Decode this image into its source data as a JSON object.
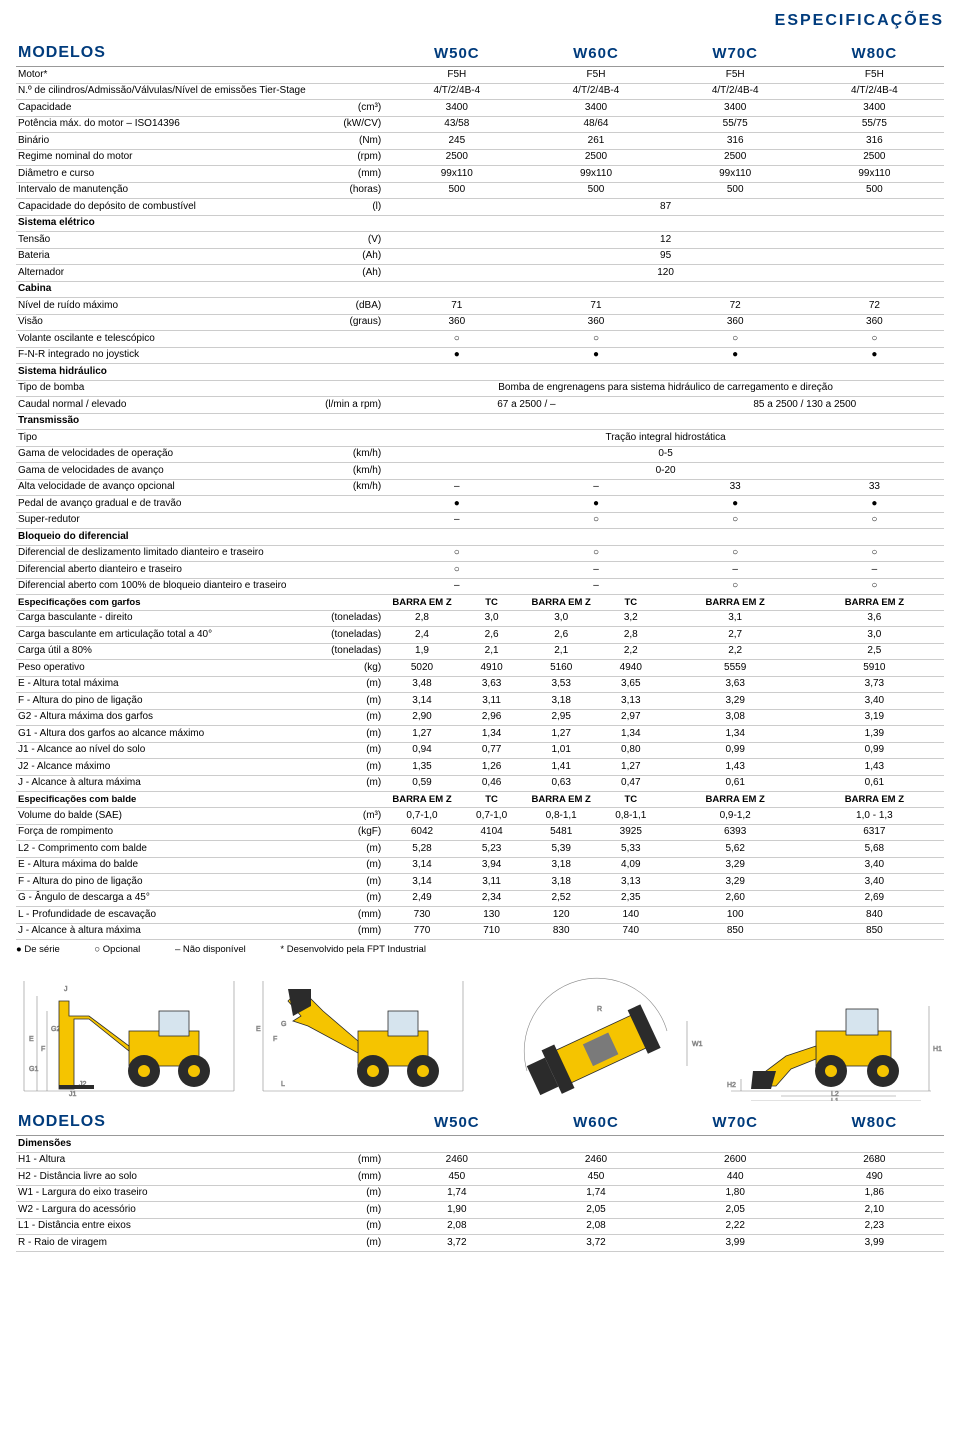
{
  "header": "ESPECIFICAÇÕES",
  "modelos_label": "MODELOS",
  "models": [
    "W50C",
    "W60C",
    "W70C",
    "W80C"
  ],
  "rows": [
    {
      "type": "row",
      "label": "Motor*",
      "unit": "",
      "v": [
        "F5H",
        "F5H",
        "F5H",
        "F5H"
      ]
    },
    {
      "type": "row",
      "label": "N.º de cilindros/Admissão/Válvulas/Nível de emissões Tier-Stage",
      "unit": "",
      "v": [
        "4/T/2/4B-4",
        "4/T/2/4B-4",
        "4/T/2/4B-4",
        "4/T/2/4B-4"
      ]
    },
    {
      "type": "row",
      "label": "Capacidade",
      "unit": "(cm³)",
      "v": [
        "3400",
        "3400",
        "3400",
        "3400"
      ]
    },
    {
      "type": "row",
      "label": "Potência máx. do motor – ISO14396",
      "unit": "(kW/CV)",
      "v": [
        "43/58",
        "48/64",
        "55/75",
        "55/75"
      ]
    },
    {
      "type": "row",
      "label": "Binário",
      "unit": "(Nm)",
      "v": [
        "245",
        "261",
        "316",
        "316"
      ]
    },
    {
      "type": "row",
      "label": "Regime nominal do motor",
      "unit": "(rpm)",
      "v": [
        "2500",
        "2500",
        "2500",
        "2500"
      ]
    },
    {
      "type": "row",
      "label": "Diâmetro e curso",
      "unit": "(mm)",
      "v": [
        "99x110",
        "99x110",
        "99x110",
        "99x110"
      ]
    },
    {
      "type": "row",
      "label": "Intervalo de manutenção",
      "unit": "(horas)",
      "v": [
        "500",
        "500",
        "500",
        "500"
      ]
    },
    {
      "type": "span",
      "label": "Capacidade do depósito de combustível",
      "unit": "(l)",
      "val": "87"
    },
    {
      "type": "section",
      "label": "Sistema elétrico"
    },
    {
      "type": "span",
      "label": "Tensão",
      "unit": "(V)",
      "val": "12"
    },
    {
      "type": "span",
      "label": "Bateria",
      "unit": "(Ah)",
      "val": "95"
    },
    {
      "type": "span",
      "label": "Alternador",
      "unit": "(Ah)",
      "val": "120"
    },
    {
      "type": "section",
      "label": "Cabina"
    },
    {
      "type": "row",
      "label": "Nível de ruído máximo",
      "unit": "(dBA)",
      "v": [
        "71",
        "71",
        "72",
        "72"
      ]
    },
    {
      "type": "row",
      "label": "Visão",
      "unit": "(graus)",
      "v": [
        "360",
        "360",
        "360",
        "360"
      ]
    },
    {
      "type": "row",
      "label": "Volante oscilante e telescópico",
      "unit": "",
      "v": [
        "○",
        "○",
        "○",
        "○"
      ]
    },
    {
      "type": "row",
      "label": "F-N-R integrado no joystick",
      "unit": "",
      "v": [
        "●",
        "●",
        "●",
        "●"
      ]
    },
    {
      "type": "section",
      "label": "Sistema hidráulico"
    },
    {
      "type": "span",
      "label": "Tipo de bomba",
      "unit": "",
      "val": "Bomba de engrenagens para sistema hidráulico de carregamento e direção"
    },
    {
      "type": "row2",
      "label": "Caudal normal / elevado",
      "unit": "(l/min a rpm)",
      "v": [
        "67 a 2500 / –",
        "85 a 2500 / 130 a 2500"
      ]
    },
    {
      "type": "section",
      "label": "Transmissão"
    },
    {
      "type": "span",
      "label": "Tipo",
      "unit": "",
      "val": "Tração integral hidrostática"
    },
    {
      "type": "span",
      "label": "Gama de velocidades de operação",
      "unit": "(km/h)",
      "val": "0-5"
    },
    {
      "type": "span",
      "label": "Gama de velocidades de avanço",
      "unit": "(km/h)",
      "val": "0-20"
    },
    {
      "type": "row",
      "label": "Alta velocidade de avanço opcional",
      "unit": "(km/h)",
      "v": [
        "–",
        "–",
        "33",
        "33"
      ]
    },
    {
      "type": "row",
      "label": "Pedal de avanço gradual e de travão",
      "unit": "",
      "v": [
        "●",
        "●",
        "●",
        "●"
      ]
    },
    {
      "type": "row",
      "label": "Super-redutor",
      "unit": "",
      "v": [
        "–",
        "○",
        "○",
        "○"
      ]
    },
    {
      "type": "section",
      "label": "Bloqueio do diferencial"
    },
    {
      "type": "row",
      "label": "Diferencial de deslizamento limitado dianteiro e traseiro",
      "unit": "",
      "v": [
        "○",
        "○",
        "○",
        "○"
      ]
    },
    {
      "type": "row",
      "label": "Diferencial aberto dianteiro e traseiro",
      "unit": "",
      "v": [
        "○",
        "–",
        "–",
        "–"
      ]
    },
    {
      "type": "row",
      "label": "Diferencial aberto com 100% de bloqueio dianteiro e traseiro",
      "unit": "",
      "v": [
        "–",
        "–",
        "○",
        "○"
      ]
    },
    {
      "type": "subhead",
      "label": "Especificações com garfos",
      "v": [
        "BARRA EM Z",
        "TC",
        "BARRA EM Z",
        "TC",
        "BARRA EM Z",
        "BARRA EM Z"
      ]
    },
    {
      "type": "row6",
      "label": "Carga basculante - direito",
      "unit": "(toneladas)",
      "v": [
        "2,8",
        "3,0",
        "3,0",
        "3,2",
        "3,1",
        "3,6"
      ]
    },
    {
      "type": "row6",
      "label": "Carga basculante em articulação total a 40°",
      "unit": "(toneladas)",
      "v": [
        "2,4",
        "2,6",
        "2,6",
        "2,8",
        "2,7",
        "3,0"
      ]
    },
    {
      "type": "row6",
      "label": "Carga útil a 80%",
      "unit": "(toneladas)",
      "v": [
        "1,9",
        "2,1",
        "2,1",
        "2,2",
        "2,2",
        "2,5"
      ]
    },
    {
      "type": "row6",
      "label": "Peso operativo",
      "unit": "(kg)",
      "v": [
        "5020",
        "4910",
        "5160",
        "4940",
        "5559",
        "5910"
      ]
    },
    {
      "type": "row6",
      "label": "E - Altura total máxima",
      "unit": "(m)",
      "v": [
        "3,48",
        "3,63",
        "3,53",
        "3,65",
        "3,63",
        "3,73"
      ]
    },
    {
      "type": "row6",
      "label": "F - Altura do pino de ligação",
      "unit": "(m)",
      "v": [
        "3,14",
        "3,11",
        "3,18",
        "3,13",
        "3,29",
        "3,40"
      ]
    },
    {
      "type": "row6",
      "label": "G2 - Altura máxima dos garfos",
      "unit": "(m)",
      "v": [
        "2,90",
        "2,96",
        "2,95",
        "2,97",
        "3,08",
        "3,19"
      ]
    },
    {
      "type": "row6",
      "label": "G1 - Altura dos garfos ao alcance máximo",
      "unit": "(m)",
      "v": [
        "1,27",
        "1,34",
        "1,27",
        "1,34",
        "1,34",
        "1,39"
      ]
    },
    {
      "type": "row6",
      "label": "J1 - Alcance ao nível do solo",
      "unit": "(m)",
      "v": [
        "0,94",
        "0,77",
        "1,01",
        "0,80",
        "0,99",
        "0,99"
      ]
    },
    {
      "type": "row6",
      "label": "J2 - Alcance máximo",
      "unit": "(m)",
      "v": [
        "1,35",
        "1,26",
        "1,41",
        "1,27",
        "1,43",
        "1,43"
      ]
    },
    {
      "type": "row6",
      "label": "J - Alcance à altura máxima",
      "unit": "(m)",
      "v": [
        "0,59",
        "0,46",
        "0,63",
        "0,47",
        "0,61",
        "0,61"
      ]
    },
    {
      "type": "subhead",
      "label": "Especificações com balde",
      "v": [
        "BARRA EM Z",
        "TC",
        "BARRA EM Z",
        "TC",
        "BARRA EM Z",
        "BARRA EM Z"
      ]
    },
    {
      "type": "row6",
      "label": "Volume do balde (SAE)",
      "unit": "(m³)",
      "v": [
        "0,7-1,0",
        "0,7-1,0",
        "0,8-1,1",
        "0,8-1,1",
        "0,9-1,2",
        "1,0 - 1,3"
      ]
    },
    {
      "type": "row6",
      "label": "Força de rompimento",
      "unit": "(kgF)",
      "v": [
        "6042",
        "4104",
        "5481",
        "3925",
        "6393",
        "6317"
      ]
    },
    {
      "type": "row6",
      "label": "L2 - Comprimento com balde",
      "unit": "(m)",
      "v": [
        "5,28",
        "5,23",
        "5,39",
        "5,33",
        "5,62",
        "5,68"
      ]
    },
    {
      "type": "row6",
      "label": "E - Altura máxima do balde",
      "unit": "(m)",
      "v": [
        "3,14",
        "3,94",
        "3,18",
        "4,09",
        "3,29",
        "3,40"
      ]
    },
    {
      "type": "row6",
      "label": "F - Altura do pino de ligação",
      "unit": "(m)",
      "v": [
        "3,14",
        "3,11",
        "3,18",
        "3,13",
        "3,29",
        "3,40"
      ]
    },
    {
      "type": "row6",
      "label": "G - Ângulo de descarga a 45°",
      "unit": "(m)",
      "v": [
        "2,49",
        "2,34",
        "2,52",
        "2,35",
        "2,60",
        "2,69"
      ]
    },
    {
      "type": "row6",
      "label": "L - Profundidade de escavação",
      "unit": "(mm)",
      "v": [
        "730",
        "130",
        "120",
        "140",
        "100",
        "840"
      ]
    },
    {
      "type": "row6",
      "label": "J - Alcance à altura máxima",
      "unit": "(mm)",
      "v": [
        "770",
        "710",
        "830",
        "740",
        "850",
        "850"
      ]
    }
  ],
  "legend": {
    "serie": "De série",
    "opcional": "Opcional",
    "nao": "Não disponível",
    "fpt": "Desenvolvido pela FPT Industrial"
  },
  "dims_header": "MODELOS",
  "dims_section": "Dimensões",
  "dims_rows": [
    {
      "label": "H1 - Altura",
      "unit": "(mm)",
      "v": [
        "2460",
        "2460",
        "2600",
        "2680"
      ]
    },
    {
      "label": "H2 - Distância livre ao solo",
      "unit": "(mm)",
      "v": [
        "450",
        "450",
        "440",
        "490"
      ]
    },
    {
      "label": "W1 - Largura do eixo traseiro",
      "unit": "(m)",
      "v": [
        "1,74",
        "1,74",
        "1,80",
        "1,86"
      ]
    },
    {
      "label": "W2 - Largura do acessório",
      "unit": "(m)",
      "v": [
        "1,90",
        "2,05",
        "2,05",
        "2,10"
      ]
    },
    {
      "label": "L1 - Distância entre eixos",
      "unit": "(m)",
      "v": [
        "2,08",
        "2,08",
        "2,22",
        "2,23"
      ]
    },
    {
      "label": "R - Raio de viragem",
      "unit": "(m)",
      "v": [
        "3,72",
        "3,72",
        "3,99",
        "3,99"
      ]
    }
  ],
  "colors": {
    "brand": "#003b7c",
    "machine_body": "#f5c400",
    "machine_dark": "#2b2b2b",
    "dim_line": "#888"
  }
}
